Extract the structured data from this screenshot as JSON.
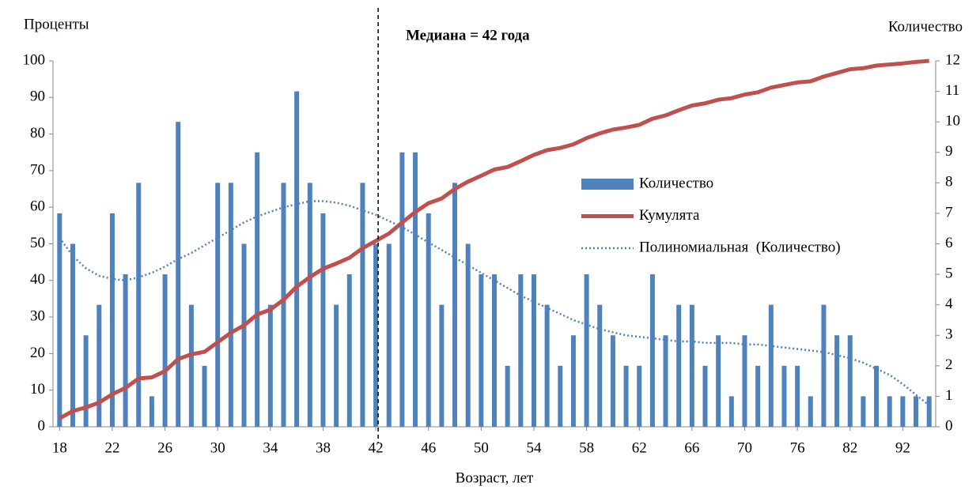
{
  "chart_data": {
    "type": "bar",
    "y_label": "Проценты",
    "y2_label": "Количество",
    "x_label": "Возраст, лет",
    "annotation": "Медиана = 42 года",
    "median": 42,
    "categories": [
      18,
      null,
      null,
      null,
      22,
      null,
      null,
      null,
      26,
      null,
      null,
      null,
      30,
      null,
      null,
      null,
      34,
      null,
      null,
      null,
      38,
      null,
      null,
      null,
      42,
      null,
      null,
      null,
      46,
      null,
      null,
      null,
      50,
      null,
      null,
      null,
      54,
      null,
      null,
      null,
      58,
      null,
      null,
      null,
      62,
      null,
      null,
      null,
      66,
      null,
      null,
      null,
      70,
      null,
      null,
      null,
      76,
      null,
      null,
      null,
      82,
      null,
      null,
      null,
      92,
      null,
      null
    ],
    "series": [
      {
        "name": "Количество",
        "type": "bar",
        "axis": "y2",
        "color": "#4f81bd",
        "values": [
          7,
          6,
          3,
          4,
          7,
          5,
          8,
          1,
          5,
          10,
          4,
          2,
          8,
          8,
          6,
          9,
          4,
          8,
          11,
          8,
          7,
          4,
          5,
          8,
          6,
          6,
          9,
          9,
          7,
          4,
          8,
          6,
          5,
          5,
          2,
          5,
          5,
          4,
          2,
          3,
          5,
          4,
          3,
          2,
          2,
          5,
          3,
          4,
          4,
          2,
          3,
          1,
          3,
          2,
          4,
          2,
          2,
          1,
          4,
          3,
          3,
          1,
          2,
          1,
          1,
          1,
          1
        ]
      },
      {
        "name": "Кумулята",
        "type": "line",
        "axis": "y",
        "color": "#c0504d",
        "values": [
          2.3,
          4.3,
          5.3,
          6.6,
          8.9,
          10.6,
          13.2,
          13.5,
          15.2,
          18.5,
          19.8,
          20.5,
          23.1,
          25.7,
          27.7,
          30.7,
          32.0,
          34.7,
          38.3,
          40.9,
          43.2,
          44.6,
          46.2,
          48.8,
          50.8,
          52.8,
          55.8,
          58.7,
          61.1,
          62.4,
          65.0,
          67.0,
          68.6,
          70.3,
          71.0,
          72.6,
          74.3,
          75.6,
          76.2,
          77.2,
          78.9,
          80.2,
          81.2,
          81.8,
          82.5,
          84.2,
          85.1,
          86.5,
          87.8,
          88.4,
          89.4,
          89.8,
          90.8,
          91.4,
          92.7,
          93.4,
          94.1,
          94.4,
          95.7,
          96.7,
          97.7,
          98.0,
          98.7,
          99.0,
          99.3,
          99.7,
          100
        ]
      },
      {
        "name": "Полиномиальная  (Количество)",
        "type": "trend",
        "axis": "y2",
        "color": "#4f81bd",
        "values": [
          6.2,
          5.6,
          5.2,
          4.95,
          4.85,
          4.8,
          4.9,
          5.05,
          5.25,
          5.5,
          5.7,
          5.95,
          6.2,
          6.45,
          6.7,
          6.9,
          7.05,
          7.2,
          7.3,
          7.4,
          7.4,
          7.35,
          7.25,
          7.1,
          6.95,
          6.75,
          6.55,
          6.3,
          6.05,
          5.8,
          5.55,
          5.3,
          5.05,
          4.8,
          4.55,
          4.3,
          4.1,
          3.9,
          3.7,
          3.5,
          3.35,
          3.2,
          3.1,
          3.0,
          2.95,
          2.9,
          2.85,
          2.8,
          2.8,
          2.75,
          2.75,
          2.75,
          2.7,
          2.7,
          2.65,
          2.6,
          2.55,
          2.5,
          2.45,
          2.35,
          2.25,
          2.1,
          1.9,
          1.7,
          1.4,
          1.05,
          0.7
        ]
      }
    ],
    "ylim": [
      0,
      100
    ],
    "yticks": [
      0,
      10,
      20,
      30,
      40,
      50,
      60,
      70,
      80,
      90,
      100
    ],
    "y2lim": [
      0,
      12
    ],
    "y2ticks": [
      0,
      1,
      2,
      3,
      4,
      5,
      6,
      7,
      8,
      9,
      10,
      11,
      12
    ]
  }
}
